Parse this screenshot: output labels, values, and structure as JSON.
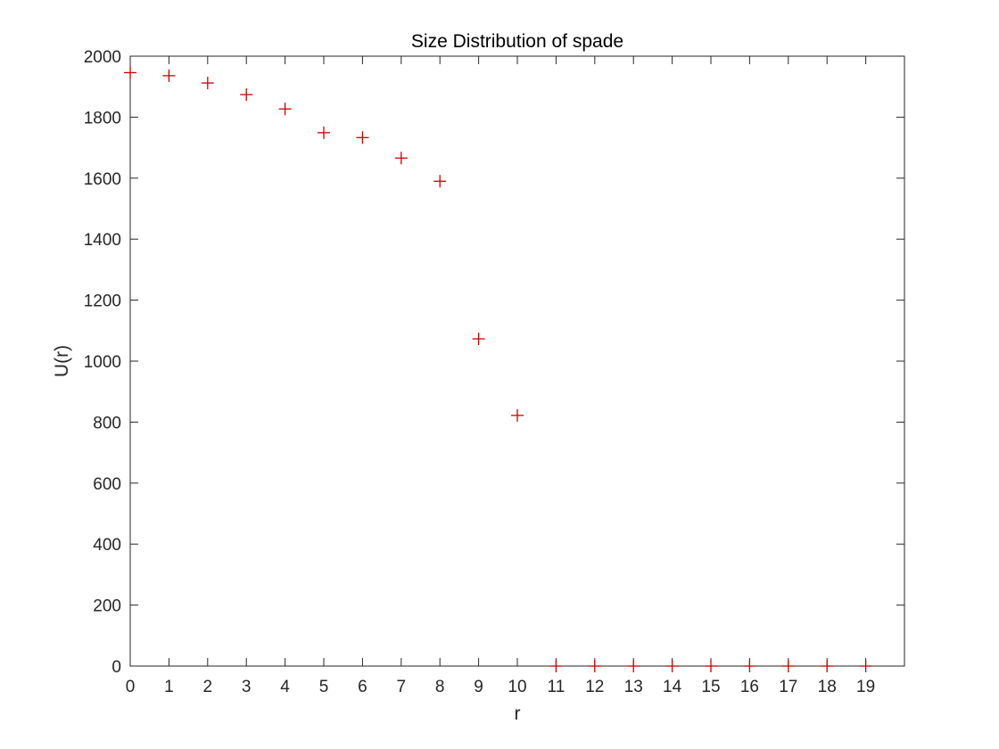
{
  "chart_data": {
    "type": "scatter",
    "title": "Size Distribution of spade",
    "xlabel": "r",
    "ylabel": "U(r)",
    "x": [
      0,
      1,
      2,
      3,
      4,
      5,
      6,
      7,
      8,
      9,
      10,
      11,
      12,
      13,
      14,
      15,
      16,
      17,
      18,
      19
    ],
    "series": [
      {
        "values": [
          1946,
          1936,
          1912,
          1874,
          1827,
          1749,
          1733,
          1666,
          1590,
          1073,
          822,
          0,
          0,
          0,
          0,
          0,
          0,
          0,
          0,
          0
        ],
        "color": "#cc0000",
        "marker": "plus"
      }
    ],
    "xlim": [
      0,
      20
    ],
    "ylim": [
      0,
      2000
    ],
    "xticks": [
      0,
      1,
      2,
      3,
      4,
      5,
      6,
      7,
      8,
      9,
      10,
      11,
      12,
      13,
      14,
      15,
      16,
      17,
      18,
      19
    ],
    "yticks": [
      0,
      200,
      400,
      600,
      800,
      1000,
      1200,
      1400,
      1600,
      1800,
      2000
    ],
    "grid": false,
    "legend": "none"
  }
}
